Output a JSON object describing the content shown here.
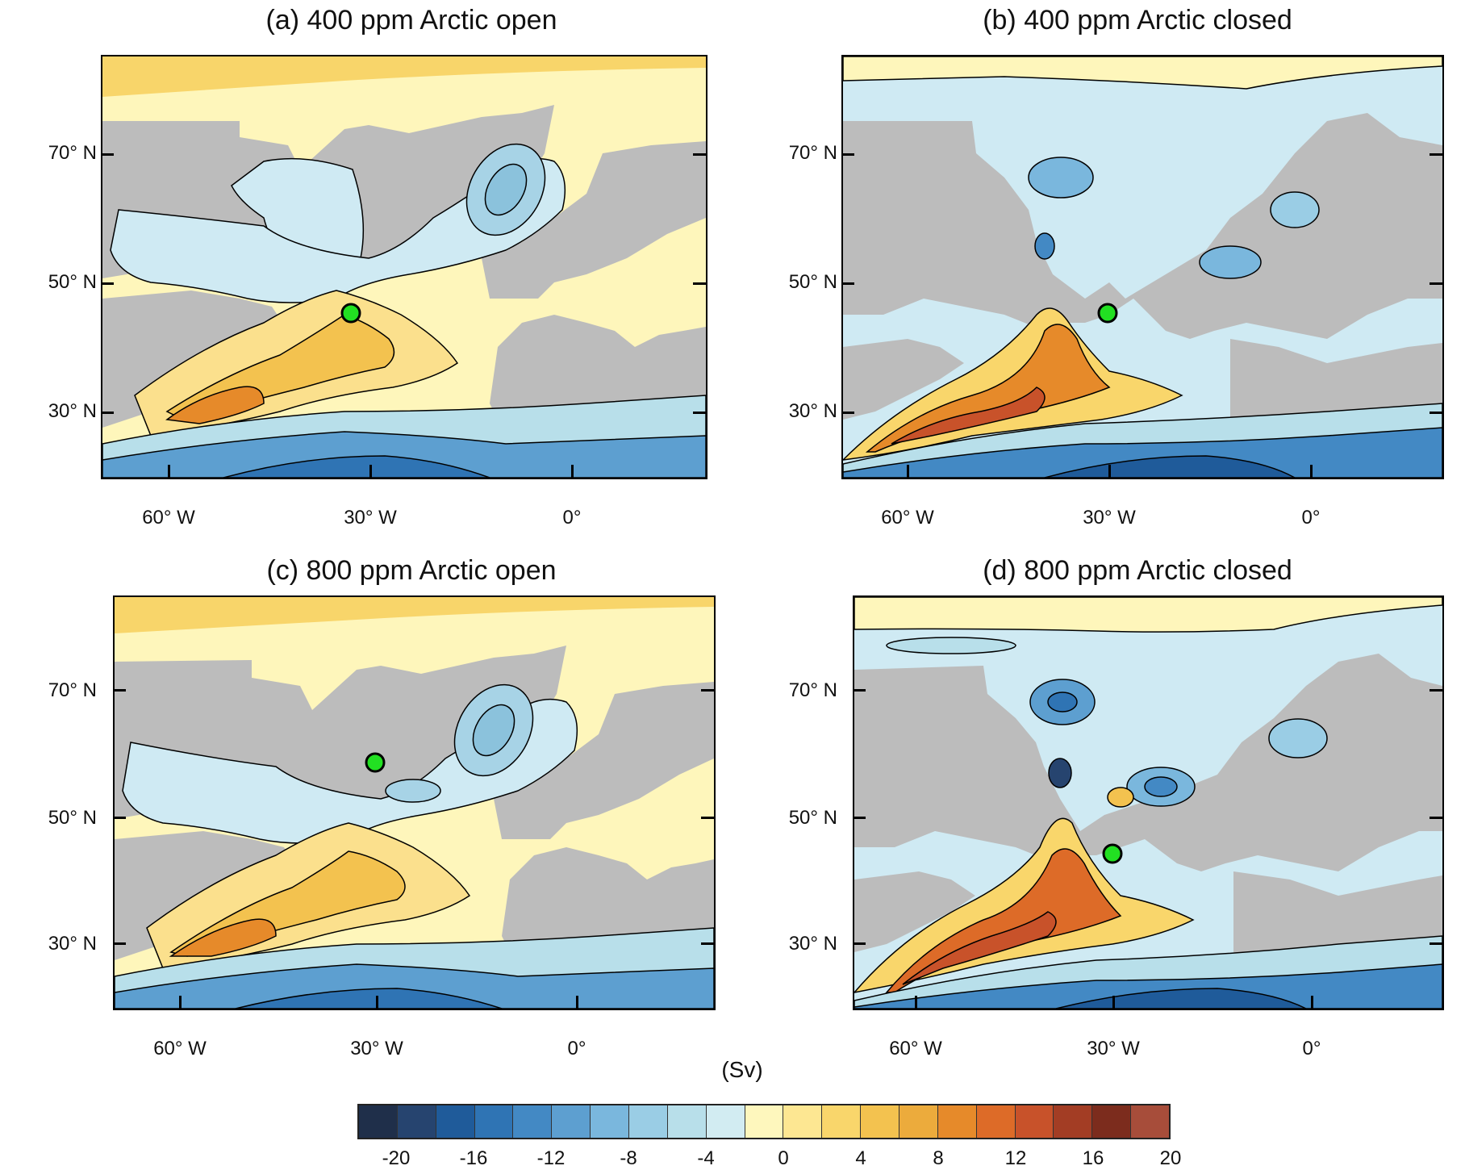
{
  "panels": [
    {
      "title": "(a) 400 ppm Arctic open"
    },
    {
      "title": "(b) 400 ppm Arctic closed"
    },
    {
      "title": "(c) 800 ppm Arctic open"
    },
    {
      "title": "(d) 800 ppm Arctic closed"
    }
  ],
  "lat_labels": [
    "70° N",
    "50° N",
    "30° N"
  ],
  "lon_labels": [
    "60° W",
    "30° W",
    "0°"
  ],
  "colorbar": {
    "unit": "(Sv)",
    "ticks": [
      "-20",
      "-16",
      "-12",
      "-8",
      "-4",
      "0",
      "4",
      "8",
      "12",
      "16",
      "20"
    ],
    "colors": [
      "#1f2f4a",
      "#26446f",
      "#1f5b9a",
      "#2f74b4",
      "#4389c4",
      "#5d9fd0",
      "#7ab7dd",
      "#9acde5",
      "#b8dfea",
      "#d2ecf2",
      "#fef7bd",
      "#fde792",
      "#f9d66b",
      "#f3c24f",
      "#ecab3c",
      "#e68a2a",
      "#dd6b28",
      "#c8522a",
      "#a33d24",
      "#7c2c1d",
      "#a74d3a"
    ]
  },
  "marker": {
    "label": "green-marker",
    "color": "#22e022"
  },
  "colors": {
    "land": "#bcbcbc",
    "ocean_light": "#cfeaf3",
    "pos_light": "#fef6bb"
  }
}
